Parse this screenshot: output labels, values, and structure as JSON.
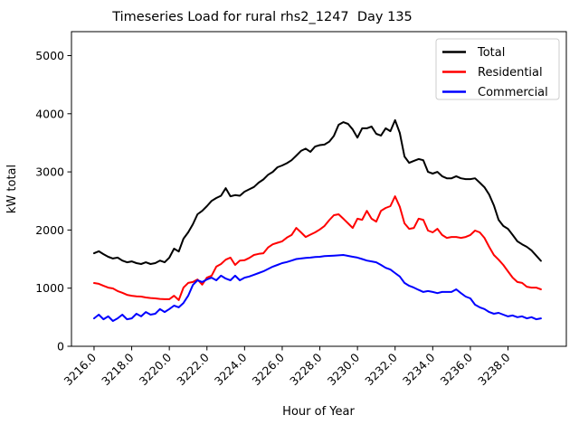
{
  "figure": {
    "background": "#ffffff",
    "frame_color": "#000000"
  },
  "chart_data": {
    "type": "line",
    "title": "Timeseries Load for rural rhs2_1247  Day 135",
    "xlabel": "Hour of Year",
    "ylabel": "kW total",
    "grid": false,
    "legend_position": "upper right",
    "xlim": [
      3214.8,
      3241.1
    ],
    "ylim": [
      0,
      5412
    ],
    "yticks": [
      0,
      1000,
      2000,
      3000,
      4000,
      5000
    ],
    "xticks": [
      3216,
      3218,
      3220,
      3222,
      3224,
      3226,
      3228,
      3230,
      3232,
      3234,
      3236,
      3238
    ],
    "xtick_labels": [
      "3216.0",
      "3218.0",
      "3220.0",
      "3222.0",
      "3224.0",
      "3226.0",
      "3228.0",
      "3230.0",
      "3232.0",
      "3234.0",
      "3236.0",
      "3238.0"
    ],
    "x": [
      3216.0,
      3216.25,
      3216.5,
      3216.75,
      3217.0,
      3217.25,
      3217.5,
      3217.75,
      3218.0,
      3218.25,
      3218.5,
      3218.75,
      3219.0,
      3219.25,
      3219.5,
      3219.75,
      3220.0,
      3220.25,
      3220.5,
      3220.75,
      3221.0,
      3221.25,
      3221.5,
      3221.75,
      3222.0,
      3222.25,
      3222.5,
      3222.75,
      3223.0,
      3223.25,
      3223.5,
      3223.75,
      3224.0,
      3224.25,
      3224.5,
      3224.75,
      3225.0,
      3225.25,
      3225.5,
      3225.75,
      3226.0,
      3226.25,
      3226.5,
      3226.75,
      3227.0,
      3227.25,
      3227.5,
      3227.75,
      3228.0,
      3228.25,
      3228.5,
      3228.75,
      3229.0,
      3229.25,
      3229.5,
      3229.75,
      3230.0,
      3230.25,
      3230.5,
      3230.75,
      3231.0,
      3231.25,
      3231.5,
      3231.75,
      3232.0,
      3232.25,
      3232.5,
      3232.75,
      3233.0,
      3233.25,
      3233.5,
      3233.75,
      3234.0,
      3234.25,
      3234.5,
      3234.75,
      3235.0,
      3235.25,
      3235.5,
      3235.75,
      3236.0,
      3236.25,
      3236.5,
      3236.75,
      3237.0,
      3237.25,
      3237.5,
      3237.75,
      3238.0,
      3238.25,
      3238.5,
      3238.75,
      3239.0,
      3239.25,
      3239.5,
      3239.75
    ],
    "series": [
      {
        "name": "Total",
        "color": "#000000",
        "values": [
          1600,
          1635,
          1585,
          1540,
          1510,
          1525,
          1475,
          1445,
          1460,
          1430,
          1415,
          1445,
          1415,
          1430,
          1475,
          1445,
          1525,
          1680,
          1630,
          1850,
          1960,
          2100,
          2270,
          2330,
          2410,
          2500,
          2550,
          2590,
          2720,
          2580,
          2600,
          2590,
          2660,
          2700,
          2740,
          2815,
          2870,
          2950,
          3000,
          3080,
          3110,
          3150,
          3200,
          3280,
          3360,
          3400,
          3345,
          3435,
          3460,
          3470,
          3520,
          3620,
          3810,
          3855,
          3825,
          3730,
          3590,
          3750,
          3750,
          3780,
          3655,
          3625,
          3750,
          3700,
          3890,
          3670,
          3265,
          3155,
          3190,
          3220,
          3200,
          3000,
          2970,
          3000,
          2925,
          2890,
          2890,
          2925,
          2890,
          2875,
          2875,
          2890,
          2815,
          2735,
          2610,
          2425,
          2175,
          2070,
          2020,
          1915,
          1805,
          1755,
          1710,
          1650,
          1560,
          1470
        ]
      },
      {
        "name": "Residential",
        "color": "#ff0000",
        "values": [
          1088,
          1075,
          1040,
          1010,
          995,
          950,
          920,
          885,
          870,
          860,
          855,
          840,
          830,
          825,
          815,
          810,
          810,
          870,
          795,
          1010,
          1090,
          1105,
          1150,
          1060,
          1180,
          1215,
          1370,
          1415,
          1490,
          1525,
          1400,
          1475,
          1480,
          1520,
          1570,
          1590,
          1600,
          1700,
          1755,
          1780,
          1805,
          1870,
          1915,
          2035,
          1960,
          1880,
          1920,
          1960,
          2010,
          2070,
          2170,
          2255,
          2270,
          2195,
          2115,
          2035,
          2195,
          2175,
          2330,
          2195,
          2145,
          2330,
          2380,
          2410,
          2580,
          2400,
          2115,
          2020,
          2035,
          2195,
          2175,
          1990,
          1960,
          2020,
          1915,
          1865,
          1880,
          1880,
          1865,
          1880,
          1915,
          1990,
          1960,
          1865,
          1710,
          1570,
          1490,
          1400,
          1290,
          1180,
          1105,
          1090,
          1025,
          1010,
          1010,
          980
        ]
      },
      {
        "name": "Commercial",
        "color": "#0000ff",
        "values": [
          480,
          545,
          465,
          515,
          435,
          480,
          545,
          465,
          480,
          560,
          515,
          590,
          545,
          560,
          640,
          590,
          640,
          700,
          670,
          745,
          870,
          1055,
          1135,
          1105,
          1150,
          1180,
          1135,
          1215,
          1165,
          1135,
          1215,
          1135,
          1180,
          1200,
          1230,
          1260,
          1290,
          1330,
          1370,
          1400,
          1430,
          1450,
          1475,
          1500,
          1510,
          1520,
          1525,
          1535,
          1540,
          1550,
          1555,
          1560,
          1565,
          1570,
          1555,
          1540,
          1525,
          1500,
          1475,
          1460,
          1445,
          1400,
          1350,
          1320,
          1260,
          1200,
          1090,
          1040,
          1010,
          970,
          935,
          950,
          935,
          915,
          935,
          935,
          935,
          980,
          915,
          855,
          825,
          715,
          670,
          640,
          590,
          560,
          575,
          545,
          515,
          530,
          500,
          515,
          480,
          500,
          465,
          480
        ]
      }
    ]
  },
  "legend": {
    "entries": [
      {
        "label": "Total",
        "color": "#000000"
      },
      {
        "label": "Residential",
        "color": "#ff0000"
      },
      {
        "label": "Commercial",
        "color": "#0000ff"
      }
    ]
  }
}
